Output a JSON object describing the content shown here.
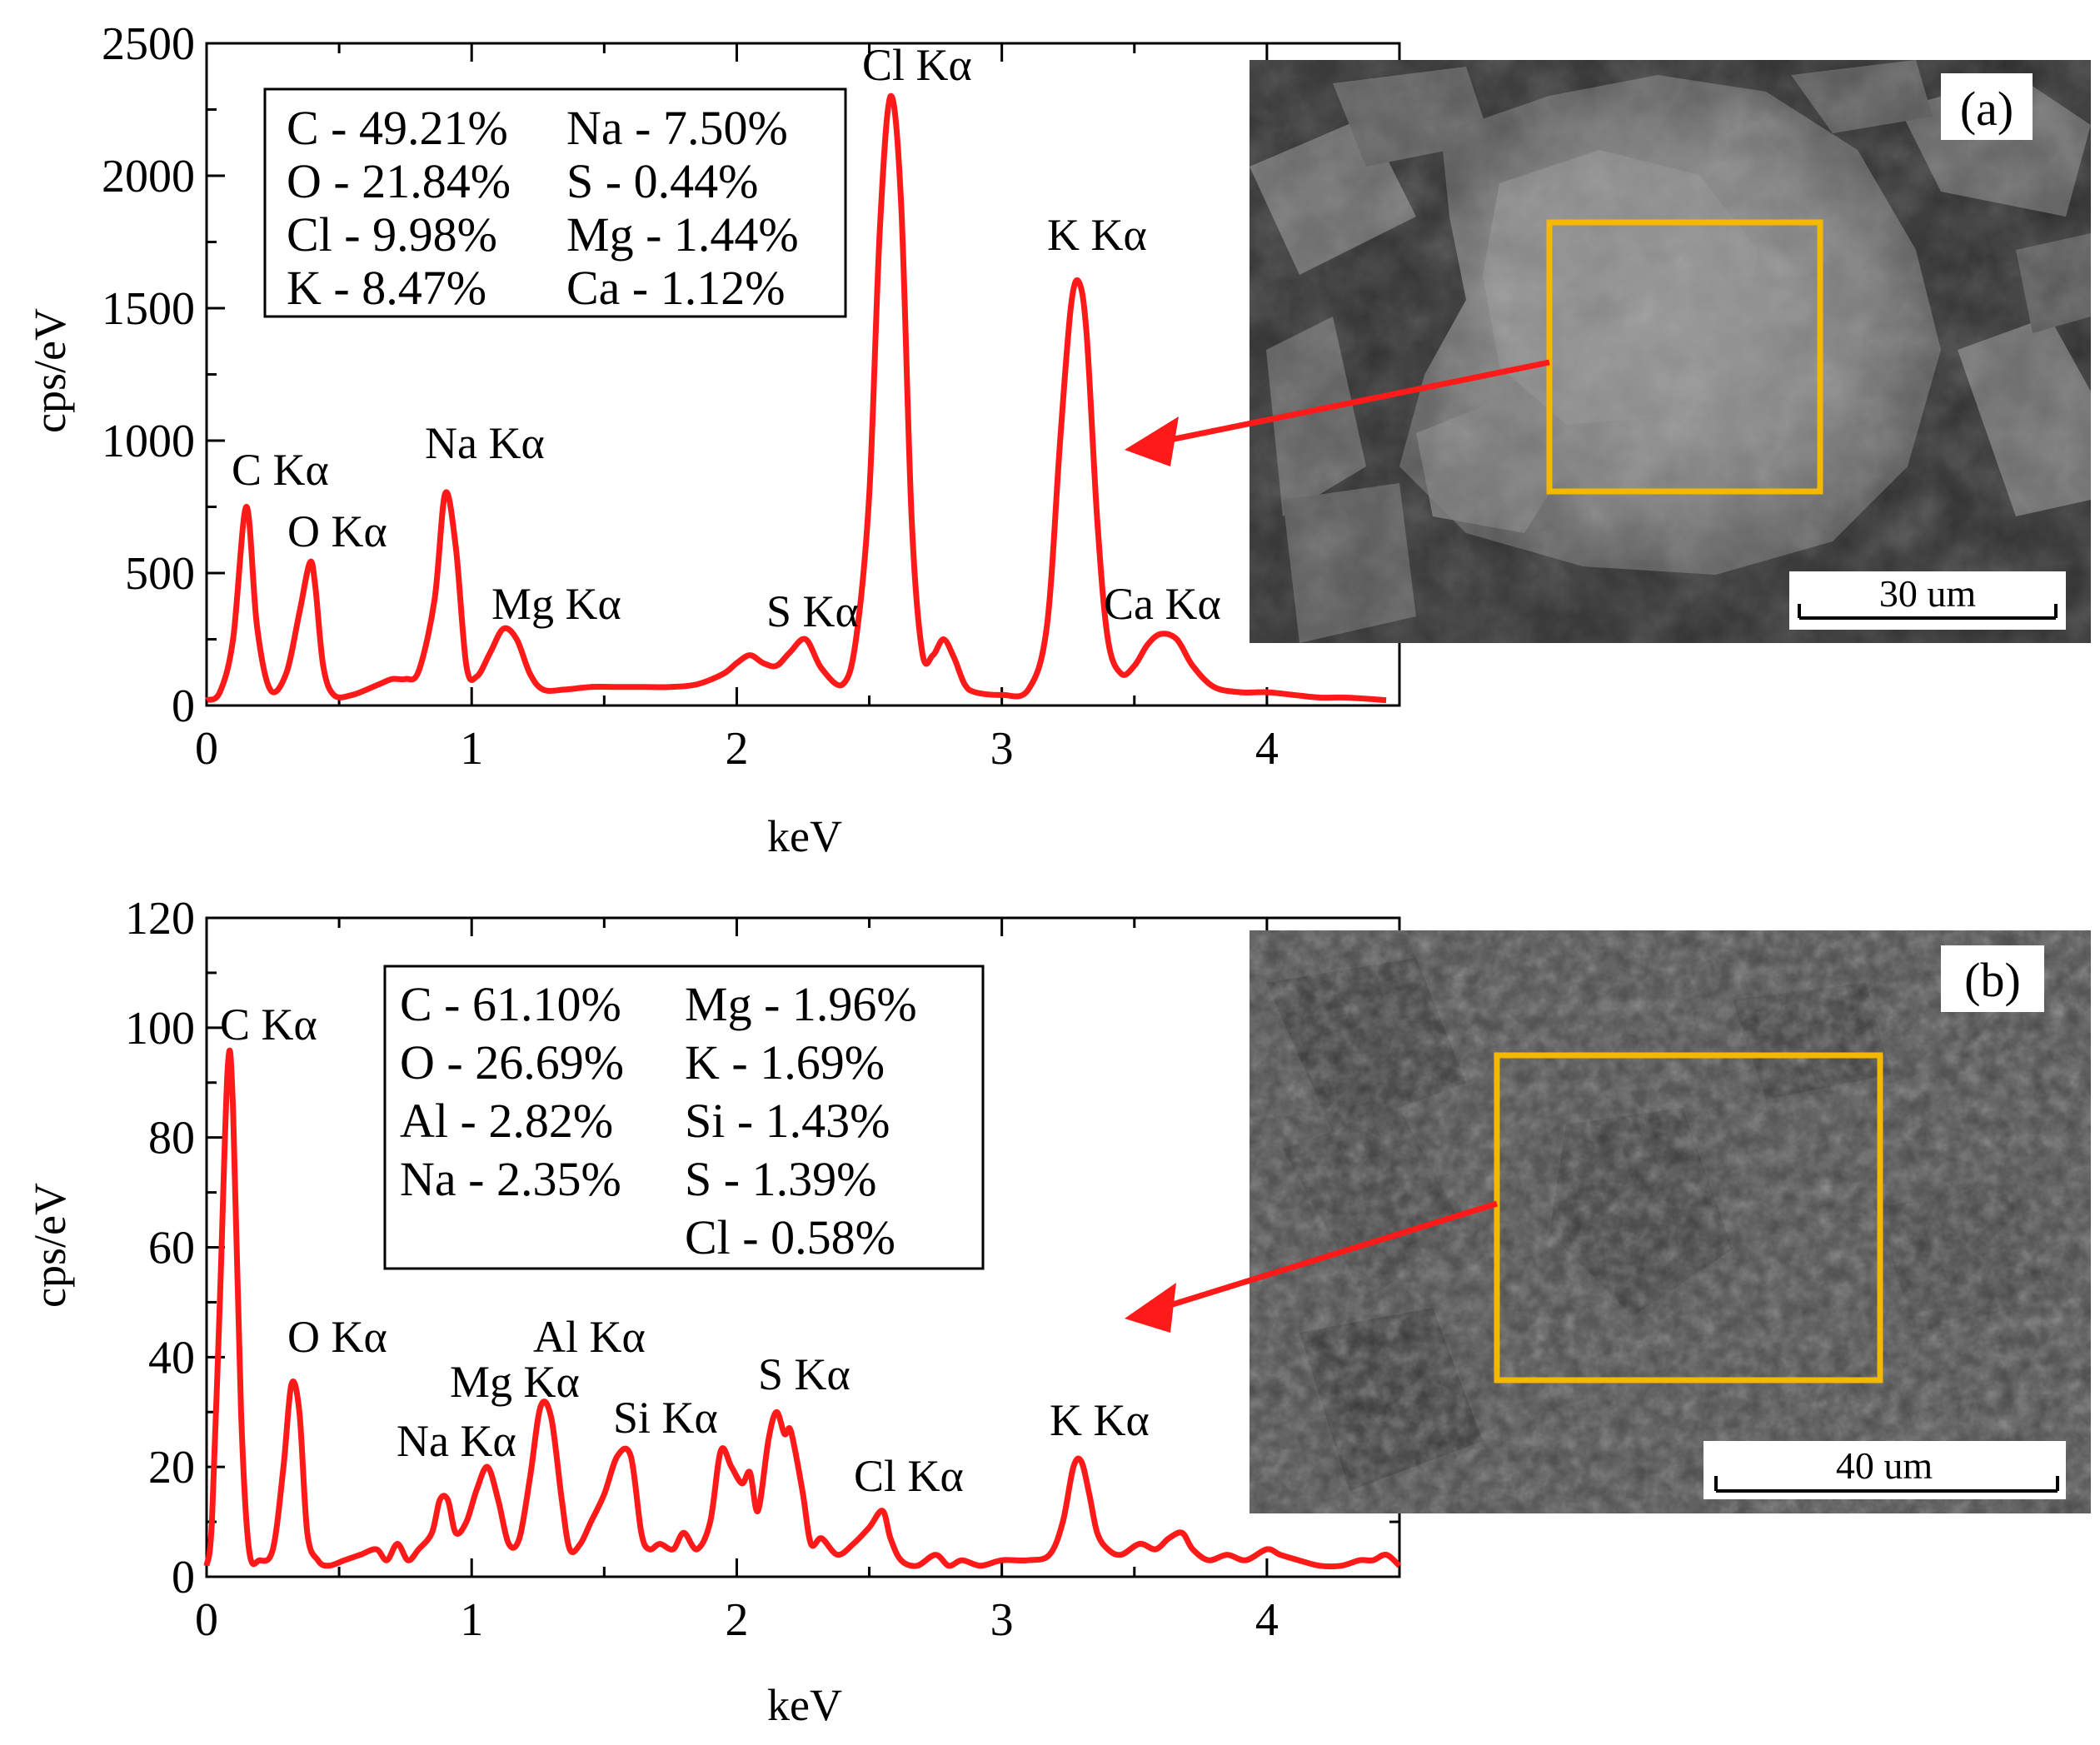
{
  "chart_data": [
    {
      "panel": "(a)",
      "type": "line",
      "xlabel": "keV",
      "ylabel": "cps/eV",
      "xlim": [
        0,
        4.5
      ],
      "ylim": [
        0,
        2500
      ],
      "xticks": [
        0,
        1,
        2,
        3,
        4
      ],
      "yticks": [
        0,
        500,
        1000,
        1500,
        2000,
        2500
      ],
      "series": [
        {
          "color": "#ff1a1a",
          "x": [
            0.0,
            0.05,
            0.1,
            0.15,
            0.19,
            0.24,
            0.3,
            0.35,
            0.39,
            0.41,
            0.44,
            0.48,
            0.55,
            0.65,
            0.7,
            0.75,
            0.8,
            0.86,
            0.9,
            0.94,
            0.98,
            1.02,
            1.07,
            1.12,
            1.17,
            1.22,
            1.27,
            1.35,
            1.45,
            1.55,
            1.65,
            1.75,
            1.85,
            1.95,
            2.0,
            2.05,
            2.1,
            2.15,
            2.2,
            2.26,
            2.32,
            2.4,
            2.45,
            2.5,
            2.54,
            2.58,
            2.62,
            2.66,
            2.7,
            2.74,
            2.78,
            2.82,
            2.86,
            2.9,
            3.0,
            3.1,
            3.17,
            3.22,
            3.26,
            3.29,
            3.32,
            3.36,
            3.4,
            3.45,
            3.5,
            3.55,
            3.6,
            3.66,
            3.72,
            3.8,
            3.9,
            4.0,
            4.1,
            4.2,
            4.3,
            4.45
          ],
          "y": [
            20,
            50,
            250,
            750,
            300,
            60,
            120,
            350,
            540,
            450,
            150,
            40,
            40,
            80,
            100,
            100,
            130,
            400,
            800,
            600,
            150,
            110,
            200,
            290,
            250,
            120,
            60,
            60,
            70,
            70,
            70,
            70,
            80,
            120,
            160,
            190,
            160,
            150,
            200,
            250,
            140,
            80,
            250,
            800,
            1800,
            2300,
            1900,
            700,
            200,
            190,
            250,
            180,
            80,
            50,
            40,
            60,
            300,
            1000,
            1500,
            1600,
            1400,
            700,
            250,
            120,
            150,
            230,
            270,
            250,
            150,
            70,
            50,
            50,
            40,
            30,
            30,
            20
          ]
        }
      ],
      "annotations": [
        "C Kα",
        "O Kα",
        "Na Kα",
        "Mg Kα",
        "S Kα",
        "Cl Kα",
        "K Kα",
        "Ca Kα"
      ],
      "composition": [
        "C - 49.21%",
        "Na - 7.50%",
        "O - 21.84%",
        "S - 0.44%",
        "Cl - 9.98%",
        "Mg - 1.44%",
        "K - 8.47%",
        "Ca - 1.12%"
      ]
    },
    {
      "panel": "(b)",
      "type": "line",
      "xlabel": "keV",
      "ylabel": "cps/eV",
      "xlim": [
        0,
        4.5
      ],
      "ylim": [
        0,
        120
      ],
      "xticks": [
        0,
        1,
        2,
        3,
        4
      ],
      "yticks": [
        0,
        20,
        40,
        60,
        80,
        100,
        120
      ],
      "series": [
        {
          "color": "#ff1a1a",
          "x": [
            0.0,
            0.02,
            0.05,
            0.08,
            0.1,
            0.13,
            0.16,
            0.2,
            0.25,
            0.29,
            0.32,
            0.35,
            0.38,
            0.42,
            0.46,
            0.52,
            0.58,
            0.64,
            0.68,
            0.72,
            0.76,
            0.8,
            0.85,
            0.88,
            0.91,
            0.94,
            0.98,
            1.02,
            1.06,
            1.1,
            1.14,
            1.18,
            1.22,
            1.26,
            1.3,
            1.34,
            1.37,
            1.41,
            1.45,
            1.5,
            1.55,
            1.6,
            1.64,
            1.67,
            1.71,
            1.76,
            1.8,
            1.85,
            1.9,
            1.94,
            1.98,
            2.02,
            2.05,
            2.08,
            2.12,
            2.15,
            2.18,
            2.2,
            2.22,
            2.25,
            2.28,
            2.32,
            2.38,
            2.44,
            2.5,
            2.55,
            2.58,
            2.62,
            2.68,
            2.75,
            2.8,
            2.85,
            2.92,
            3.0,
            3.1,
            3.18,
            3.23,
            3.27,
            3.3,
            3.33,
            3.36,
            3.4,
            3.45,
            3.52,
            3.58,
            3.63,
            3.68,
            3.72,
            3.78,
            3.85,
            3.92,
            4.0,
            4.05,
            4.12,
            4.2,
            4.28,
            4.35,
            4.4,
            4.45,
            4.5
          ],
          "y": [
            2,
            10,
            50,
            93,
            85,
            30,
            5,
            3,
            5,
            20,
            35,
            30,
            8,
            3,
            2,
            3,
            4,
            5,
            3,
            6,
            3,
            5,
            8,
            14,
            14,
            8,
            10,
            16,
            20,
            14,
            6,
            7,
            18,
            31,
            29,
            14,
            5,
            6,
            10,
            15,
            22,
            22,
            8,
            5,
            6,
            5,
            8,
            5,
            10,
            23,
            20,
            17,
            19,
            12,
            25,
            30,
            26,
            27,
            23,
            15,
            6,
            7,
            4,
            6,
            9,
            12,
            7,
            3,
            2,
            4,
            2,
            3,
            2,
            3,
            3,
            4,
            10,
            20,
            21,
            15,
            8,
            5,
            4,
            6,
            5,
            7,
            8,
            5,
            3,
            4,
            3,
            5,
            4,
            3,
            2,
            2,
            3,
            3,
            4,
            2
          ]
        }
      ],
      "annotations": [
        "C Kα",
        "O Kα",
        "Na Kα",
        "Mg Kα",
        "Al Kα",
        "Si Kα",
        "S Kα",
        "Cl Kα",
        "K Kα"
      ],
      "composition": [
        "C - 61.10%",
        "Mg - 1.96%",
        "O - 26.69%",
        "K - 1.69%",
        "Al - 2.82%",
        "Si - 1.43%",
        "Na - 2.35%",
        "S - 1.39%",
        "Cl - 0.58%"
      ]
    }
  ],
  "images": [
    {
      "label": "(a)",
      "scale_bar": "30 um"
    },
    {
      "label": "(b)",
      "scale_bar": "40 um"
    }
  ],
  "colors": {
    "spectrum": "#ff1a1a",
    "arrow": "#ff1a1a",
    "highlight_box": "#f5b800"
  }
}
